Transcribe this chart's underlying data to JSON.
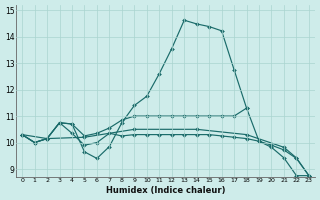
{
  "xlabel": "Humidex (Indice chaleur)",
  "background_color": "#ceecea",
  "grid_color": "#aad4cf",
  "line_color": "#1a6b6a",
  "x_range": [
    -0.5,
    23.5
  ],
  "y_range": [
    8.7,
    15.2
  ],
  "yticks": [
    9,
    10,
    11,
    12,
    13,
    14,
    15
  ],
  "xticks": [
    0,
    1,
    2,
    3,
    4,
    5,
    6,
    7,
    8,
    9,
    10,
    11,
    12,
    13,
    14,
    15,
    16,
    17,
    18,
    19,
    20,
    21,
    22,
    23
  ],
  "lines": [
    {
      "x": [
        0,
        1,
        2,
        3,
        4,
        5,
        6,
        7,
        8,
        9,
        10,
        11,
        12,
        13,
        14,
        15,
        16,
        17,
        18,
        19,
        20,
        21,
        22,
        23
      ],
      "y": [
        10.3,
        10.0,
        10.15,
        10.75,
        10.7,
        9.65,
        9.4,
        9.85,
        10.75,
        11.4,
        11.75,
        12.6,
        13.55,
        14.62,
        14.48,
        14.38,
        14.22,
        12.75,
        11.3,
        10.05,
        9.82,
        9.42,
        8.75,
        8.75
      ]
    },
    {
      "x": [
        0,
        1,
        2,
        3,
        4,
        5,
        6,
        7,
        8,
        9,
        10,
        11,
        12,
        13,
        14,
        15,
        16,
        17,
        18
      ],
      "y": [
        10.3,
        10.0,
        10.15,
        10.75,
        10.7,
        10.25,
        10.35,
        10.55,
        10.85,
        11.0,
        11.0,
        11.0,
        11.0,
        11.0,
        11.0,
        11.0,
        11.0,
        11.0,
        11.3
      ]
    },
    {
      "x": [
        0,
        1,
        2,
        3,
        4,
        5,
        6,
        7,
        8,
        9,
        10,
        11,
        12,
        13,
        14,
        15,
        16,
        17,
        18,
        19,
        20,
        21,
        22,
        23
      ],
      "y": [
        10.3,
        10.0,
        10.15,
        10.75,
        10.35,
        9.9,
        10.0,
        10.35,
        10.25,
        10.3,
        10.3,
        10.3,
        10.3,
        10.3,
        10.3,
        10.3,
        10.25,
        10.2,
        10.15,
        10.05,
        9.9,
        9.72,
        9.4,
        8.75
      ]
    },
    {
      "x": [
        0,
        2,
        5,
        9,
        14,
        18,
        21,
        22,
        23
      ],
      "y": [
        10.3,
        10.15,
        10.2,
        10.5,
        10.5,
        10.3,
        9.82,
        9.42,
        8.75
      ]
    }
  ]
}
